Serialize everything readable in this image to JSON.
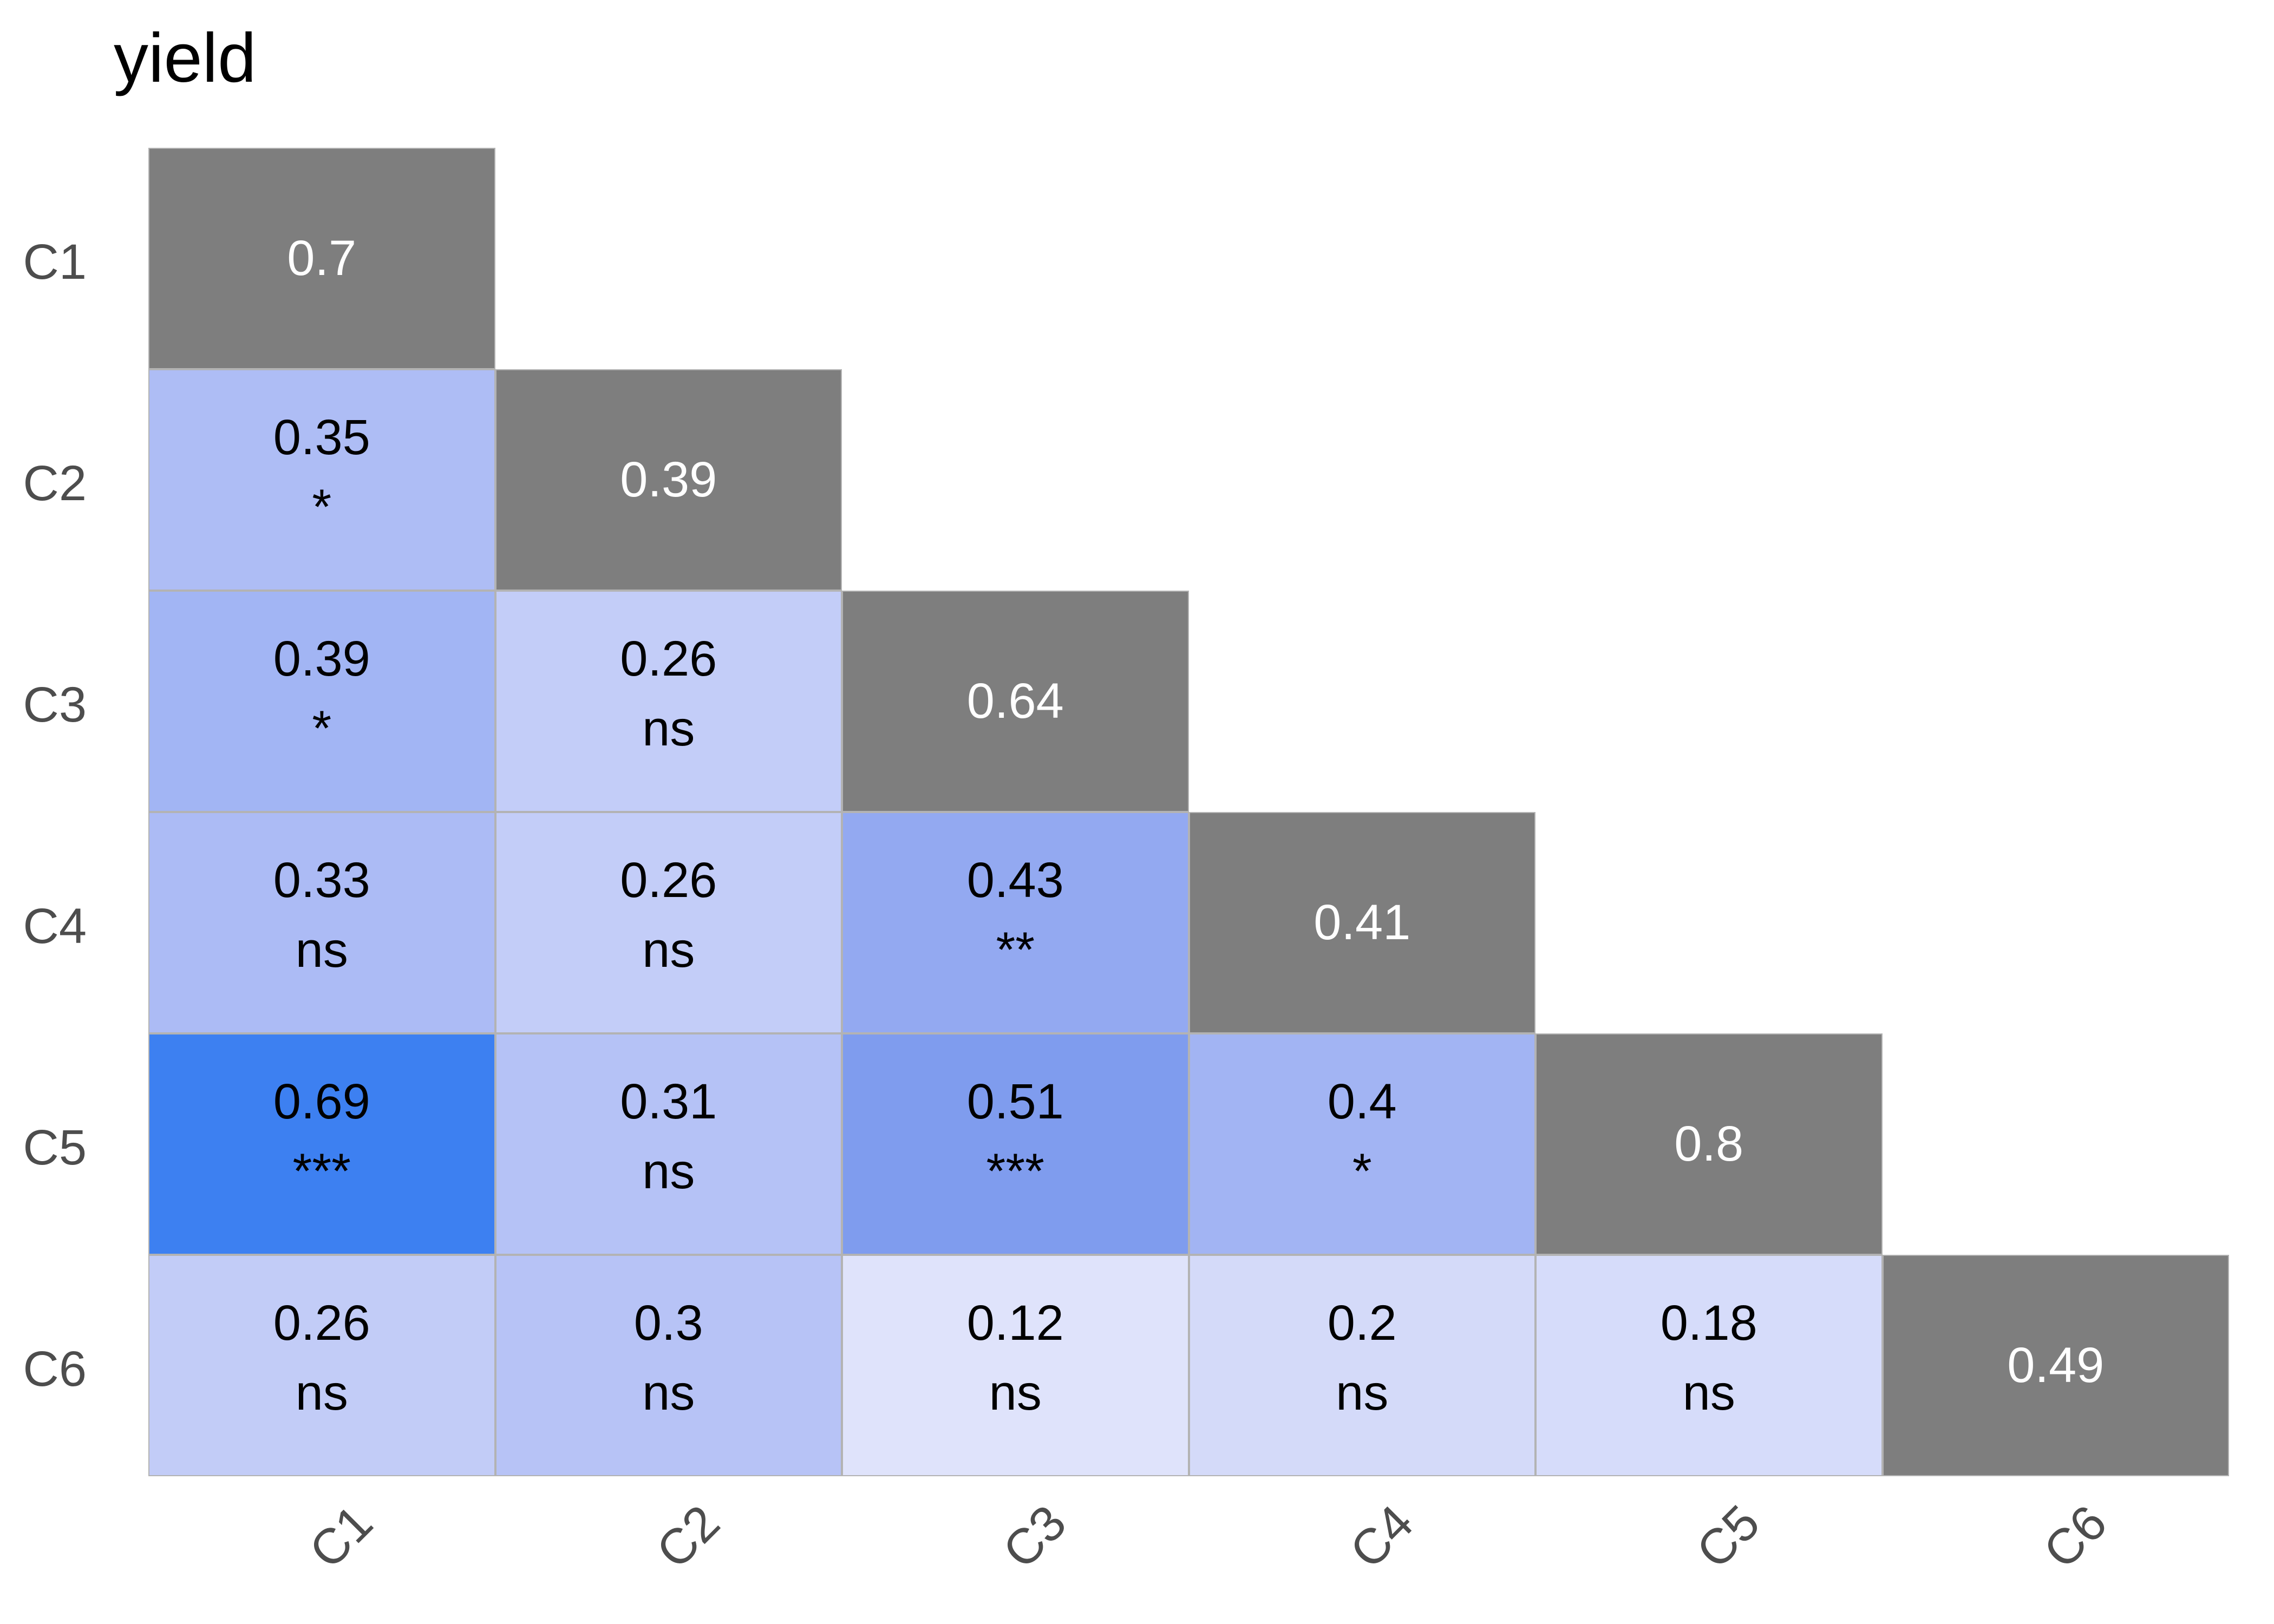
{
  "title": "yield",
  "colors": {
    "background": "#ffffff",
    "title_text": "#000000",
    "axis_text": "#4d4d4d",
    "cell_border": "#b3b3b3",
    "diagonal_fill": "#7e7e7e",
    "diagonal_text": "#ffffff",
    "offdiagonal_text": "#000000",
    "max_blue": "#3d80f1"
  },
  "chart_data": {
    "type": "heatmap",
    "title": "yield",
    "subtitle": "",
    "xlabel": "",
    "ylabel": "",
    "legend": "none",
    "grid": "off",
    "x_categories": [
      "C1",
      "C2",
      "C3",
      "C4",
      "C5",
      "C6"
    ],
    "y_categories": [
      "C1",
      "C2",
      "C3",
      "C4",
      "C5",
      "C6"
    ],
    "shape": "lower-triangular correlation matrix; diagonal gray, off-diagonal blue scaled by value",
    "cells": [
      {
        "row": "C1",
        "col": "C1",
        "value": 0.7,
        "label": "0.7",
        "significance": "",
        "diagonal": true,
        "fill": "#7e7e7e",
        "text_color": "#ffffff"
      },
      {
        "row": "C2",
        "col": "C1",
        "value": 0.35,
        "label": "0.35",
        "significance": "*",
        "diagonal": false,
        "fill": "#aebdf5",
        "text_color": "#000000"
      },
      {
        "row": "C2",
        "col": "C2",
        "value": 0.39,
        "label": "0.39",
        "significance": "",
        "diagonal": true,
        "fill": "#7e7e7e",
        "text_color": "#ffffff"
      },
      {
        "row": "C3",
        "col": "C1",
        "value": 0.39,
        "label": "0.39",
        "significance": "*",
        "diagonal": false,
        "fill": "#a2b5f4",
        "text_color": "#000000"
      },
      {
        "row": "C3",
        "col": "C2",
        "value": 0.26,
        "label": "0.26",
        "significance": "ns",
        "diagonal": false,
        "fill": "#c3cdf8",
        "text_color": "#000000"
      },
      {
        "row": "C3",
        "col": "C3",
        "value": 0.64,
        "label": "0.64",
        "significance": "",
        "diagonal": true,
        "fill": "#7e7e7e",
        "text_color": "#ffffff"
      },
      {
        "row": "C4",
        "col": "C1",
        "value": 0.33,
        "label": "0.33",
        "significance": "ns",
        "diagonal": false,
        "fill": "#acbbf5",
        "text_color": "#000000"
      },
      {
        "row": "C4",
        "col": "C2",
        "value": 0.26,
        "label": "0.26",
        "significance": "ns",
        "diagonal": false,
        "fill": "#c3cdf8",
        "text_color": "#000000"
      },
      {
        "row": "C4",
        "col": "C3",
        "value": 0.43,
        "label": "0.43",
        "significance": "**",
        "diagonal": false,
        "fill": "#93a9f1",
        "text_color": "#000000"
      },
      {
        "row": "C4",
        "col": "C4",
        "value": 0.41,
        "label": "0.41",
        "significance": "",
        "diagonal": true,
        "fill": "#7e7e7e",
        "text_color": "#ffffff"
      },
      {
        "row": "C5",
        "col": "C1",
        "value": 0.69,
        "label": "0.69",
        "significance": "***",
        "diagonal": false,
        "fill": "#3d80f1",
        "text_color": "#000000"
      },
      {
        "row": "C5",
        "col": "C2",
        "value": 0.31,
        "label": "0.31",
        "significance": "ns",
        "diagonal": false,
        "fill": "#b5c2f6",
        "text_color": "#000000"
      },
      {
        "row": "C5",
        "col": "C3",
        "value": 0.51,
        "label": "0.51",
        "significance": "***",
        "diagonal": false,
        "fill": "#7f9cee",
        "text_color": "#000000"
      },
      {
        "row": "C5",
        "col": "C4",
        "value": 0.4,
        "label": "0.4",
        "significance": "*",
        "diagonal": false,
        "fill": "#a2b4f3",
        "text_color": "#000000"
      },
      {
        "row": "C5",
        "col": "C5",
        "value": 0.8,
        "label": "0.8",
        "significance": "",
        "diagonal": true,
        "fill": "#7e7e7e",
        "text_color": "#ffffff"
      },
      {
        "row": "C6",
        "col": "C1",
        "value": 0.26,
        "label": "0.26",
        "significance": "ns",
        "diagonal": false,
        "fill": "#c2ccf7",
        "text_color": "#000000"
      },
      {
        "row": "C6",
        "col": "C2",
        "value": 0.3,
        "label": "0.3",
        "significance": "ns",
        "diagonal": false,
        "fill": "#b7c3f6",
        "text_color": "#000000"
      },
      {
        "row": "C6",
        "col": "C3",
        "value": 0.12,
        "label": "0.12",
        "significance": "ns",
        "diagonal": false,
        "fill": "#dfe3fb",
        "text_color": "#000000"
      },
      {
        "row": "C6",
        "col": "C4",
        "value": 0.2,
        "label": "0.2",
        "significance": "ns",
        "diagonal": false,
        "fill": "#d4daf9",
        "text_color": "#000000"
      },
      {
        "row": "C6",
        "col": "C5",
        "value": 0.18,
        "label": "0.18",
        "significance": "ns",
        "diagonal": false,
        "fill": "#d6dcfa",
        "text_color": "#000000"
      },
      {
        "row": "C6",
        "col": "C6",
        "value": 0.49,
        "label": "0.49",
        "significance": "",
        "diagonal": true,
        "fill": "#7e7e7e",
        "text_color": "#ffffff"
      }
    ]
  }
}
